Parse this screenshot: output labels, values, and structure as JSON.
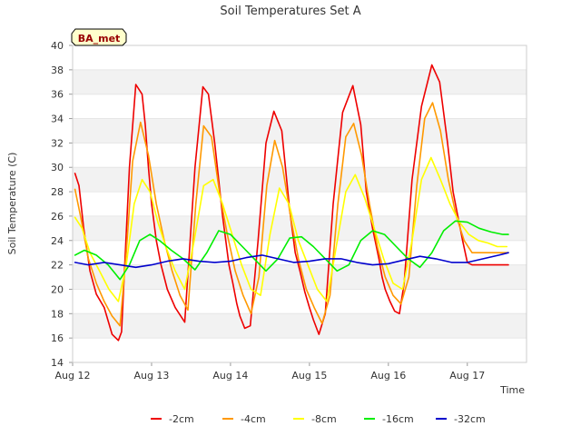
{
  "chart_data": {
    "type": "line",
    "title": "Soil Temperatures Set A",
    "xlabel": "Time",
    "ylabel": "Soil Temperature (C)",
    "site_badge": "BA_met",
    "ylim": [
      14,
      40
    ],
    "yticks": [
      14,
      16,
      18,
      20,
      22,
      24,
      26,
      28,
      30,
      32,
      34,
      36,
      38,
      40
    ],
    "xlim": [
      0,
      5.75
    ],
    "xticks": [
      {
        "value": 0,
        "label": "Aug 12"
      },
      {
        "value": 1,
        "label": "Aug 13"
      },
      {
        "value": 2,
        "label": "Aug 14"
      },
      {
        "value": 3,
        "label": "Aug 15"
      },
      {
        "value": 4,
        "label": "Aug 16"
      },
      {
        "value": 5,
        "label": "Aug 17"
      }
    ],
    "grid": "horizontal bands",
    "legend_position": "bottom",
    "x_unit_note": "x values are days since Aug 12 00:00",
    "series": [
      {
        "name": "-2cm",
        "color": "#ee0000",
        "x": [
          0.03,
          0.08,
          0.14,
          0.22,
          0.3,
          0.4,
          0.5,
          0.58,
          0.62,
          0.66,
          0.72,
          0.8,
          0.88,
          0.92,
          0.96,
          1.0,
          1.06,
          1.12,
          1.2,
          1.3,
          1.42,
          1.55,
          1.65,
          1.72,
          1.8,
          1.9,
          1.98,
          2.03,
          2.08,
          2.12,
          2.18,
          2.25,
          2.35,
          2.45,
          2.55,
          2.65,
          2.75,
          2.82,
          2.88,
          2.94,
          3.0,
          3.05,
          3.12,
          3.2,
          3.3,
          3.42,
          3.55,
          3.65,
          3.72,
          3.8,
          3.88,
          3.92,
          3.96,
          4.02,
          4.08,
          4.14,
          4.2,
          4.3,
          4.42,
          4.55,
          4.65,
          4.75,
          4.82,
          4.88,
          4.94,
          5.0,
          5.06,
          5.12,
          5.2,
          5.3,
          5.42,
          5.52
        ],
        "y": [
          29.5,
          28.5,
          25.0,
          21.5,
          19.6,
          18.5,
          16.3,
          15.8,
          16.5,
          22.0,
          30.0,
          36.8,
          36.0,
          33.5,
          30.0,
          27.0,
          24.0,
          22.0,
          20.0,
          18.5,
          17.3,
          30.0,
          36.6,
          36.0,
          32.0,
          26.0,
          22.0,
          20.5,
          18.8,
          17.8,
          16.8,
          17.0,
          24.0,
          32.0,
          34.6,
          33.0,
          26.5,
          23.0,
          21.5,
          19.8,
          18.5,
          17.5,
          16.3,
          18.0,
          27.0,
          34.5,
          36.7,
          33.5,
          28.0,
          25.0,
          22.5,
          21.0,
          20.0,
          19.0,
          18.2,
          18.0,
          20.5,
          29.0,
          35.0,
          38.4,
          37.0,
          32.0,
          28.0,
          26.0,
          24.0,
          22.2,
          22.0,
          22.0,
          22.0,
          22.0,
          22.0,
          22.0
        ]
      },
      {
        "name": "-4cm",
        "color": "#ff9900",
        "x": [
          0.03,
          0.1,
          0.2,
          0.3,
          0.4,
          0.5,
          0.6,
          0.68,
          0.76,
          0.86,
          0.96,
          1.06,
          1.16,
          1.26,
          1.36,
          1.46,
          1.56,
          1.66,
          1.76,
          1.86,
          1.96,
          2.06,
          2.16,
          2.26,
          2.36,
          2.46,
          2.56,
          2.66,
          2.76,
          2.86,
          2.96,
          3.06,
          3.16,
          3.26,
          3.36,
          3.46,
          3.56,
          3.66,
          3.76,
          3.86,
          3.96,
          4.06,
          4.16,
          4.26,
          4.36,
          4.46,
          4.56,
          4.66,
          4.76,
          4.86,
          4.96,
          5.06,
          5.16,
          5.26,
          5.36,
          5.46,
          5.52
        ],
        "y": [
          28.2,
          26.0,
          22.5,
          20.5,
          19.0,
          17.8,
          17.0,
          23.0,
          30.5,
          33.7,
          31.0,
          27.0,
          24.0,
          21.5,
          19.5,
          18.3,
          27.0,
          33.4,
          32.5,
          28.0,
          24.5,
          21.5,
          19.5,
          18.0,
          21.0,
          28.5,
          32.2,
          30.0,
          26.0,
          22.5,
          20.0,
          18.5,
          17.2,
          19.5,
          27.0,
          32.5,
          33.6,
          31.0,
          27.0,
          23.5,
          21.0,
          19.5,
          18.8,
          21.0,
          28.5,
          34.0,
          35.3,
          33.0,
          29.0,
          26.0,
          24.0,
          23.0,
          23.0,
          23.0,
          23.0,
          23.0,
          23.0
        ]
      },
      {
        "name": "-8cm",
        "color": "#ffff00",
        "x": [
          0.03,
          0.12,
          0.22,
          0.34,
          0.46,
          0.58,
          0.68,
          0.78,
          0.88,
          0.98,
          1.08,
          1.18,
          1.3,
          1.42,
          1.54,
          1.66,
          1.78,
          1.9,
          2.02,
          2.14,
          2.26,
          2.38,
          2.5,
          2.62,
          2.74,
          2.86,
          2.98,
          3.1,
          3.22,
          3.34,
          3.46,
          3.58,
          3.7,
          3.82,
          3.94,
          4.06,
          4.18,
          4.3,
          4.42,
          4.54,
          4.66,
          4.78,
          4.9,
          5.02,
          5.14,
          5.26,
          5.38,
          5.5
        ],
        "y": [
          25.9,
          25.0,
          23.0,
          21.5,
          20.0,
          19.0,
          22.0,
          27.0,
          29.0,
          28.0,
          25.5,
          23.5,
          21.5,
          20.0,
          24.0,
          28.5,
          29.0,
          27.0,
          24.5,
          22.0,
          20.0,
          19.5,
          24.5,
          28.3,
          27.0,
          24.0,
          22.0,
          20.0,
          19.0,
          23.5,
          28.0,
          29.4,
          27.5,
          25.0,
          22.5,
          20.5,
          20.0,
          24.0,
          29.0,
          30.8,
          29.0,
          27.0,
          25.5,
          24.5,
          24.0,
          23.8,
          23.5,
          23.5
        ]
      },
      {
        "name": "-16cm",
        "color": "#00ee00",
        "x": [
          0.03,
          0.15,
          0.3,
          0.45,
          0.6,
          0.72,
          0.85,
          0.98,
          1.1,
          1.25,
          1.4,
          1.55,
          1.7,
          1.85,
          2.0,
          2.15,
          2.3,
          2.45,
          2.6,
          2.75,
          2.9,
          3.05,
          3.2,
          3.35,
          3.5,
          3.65,
          3.8,
          3.95,
          4.1,
          4.25,
          4.4,
          4.55,
          4.7,
          4.85,
          5.0,
          5.15,
          5.3,
          5.45,
          5.52
        ],
        "y": [
          22.8,
          23.2,
          22.8,
          22.0,
          20.8,
          22.0,
          24.0,
          24.5,
          24.0,
          23.2,
          22.5,
          21.6,
          23.0,
          24.8,
          24.5,
          23.5,
          22.5,
          21.5,
          22.5,
          24.2,
          24.3,
          23.5,
          22.5,
          21.5,
          22.0,
          24.0,
          24.8,
          24.5,
          23.5,
          22.5,
          21.8,
          23.0,
          24.8,
          25.6,
          25.5,
          25.0,
          24.7,
          24.5,
          24.5
        ]
      },
      {
        "name": "-32cm",
        "color": "#0000cc",
        "x": [
          0.03,
          0.2,
          0.4,
          0.6,
          0.8,
          1.0,
          1.2,
          1.4,
          1.6,
          1.8,
          2.0,
          2.2,
          2.4,
          2.6,
          2.8,
          3.0,
          3.2,
          3.4,
          3.6,
          3.8,
          4.0,
          4.2,
          4.4,
          4.6,
          4.8,
          5.0,
          5.2,
          5.4,
          5.52
        ],
        "y": [
          22.2,
          22.0,
          22.2,
          22.0,
          21.8,
          22.0,
          22.3,
          22.5,
          22.3,
          22.2,
          22.3,
          22.6,
          22.8,
          22.5,
          22.2,
          22.3,
          22.5,
          22.5,
          22.2,
          22.0,
          22.1,
          22.4,
          22.7,
          22.5,
          22.2,
          22.2,
          22.5,
          22.8,
          23.0
        ]
      }
    ]
  }
}
